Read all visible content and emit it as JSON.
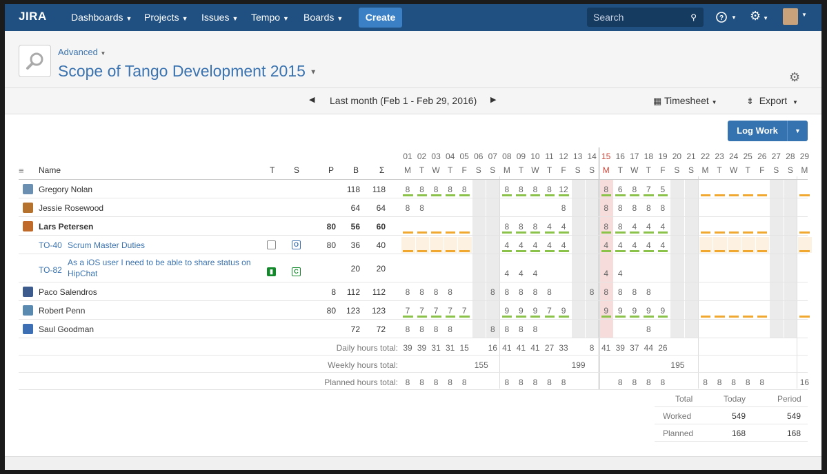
{
  "nav": {
    "logo": "JIRA",
    "items": [
      "Dashboards",
      "Projects",
      "Issues",
      "Tempo",
      "Boards"
    ],
    "create": "Create",
    "search_placeholder": "Search",
    "help": "?",
    "gear": "⚙"
  },
  "header": {
    "advanced": "Advanced",
    "title": "Scope of Tango Development 2015"
  },
  "toolbar": {
    "period": "Last month (Feb 1 - Feb 29, 2016)",
    "timesheet": "Timesheet",
    "export": "Export"
  },
  "logwork": "Log Work",
  "columns": {
    "name": "Name",
    "t": "T",
    "s": "S",
    "p": "P",
    "b": "B",
    "sigma": "Σ"
  },
  "days": {
    "numbers": [
      "01",
      "02",
      "03",
      "04",
      "05",
      "06",
      "07",
      "08",
      "09",
      "10",
      "11",
      "12",
      "13",
      "14",
      "15",
      "16",
      "17",
      "18",
      "19",
      "20",
      "21",
      "22",
      "23",
      "24",
      "25",
      "26",
      "27",
      "28",
      "29"
    ],
    "weekdays": [
      "M",
      "T",
      "W",
      "T",
      "F",
      "S",
      "S",
      "M",
      "T",
      "W",
      "T",
      "F",
      "S",
      "S",
      "M",
      "T",
      "W",
      "T",
      "F",
      "S",
      "S",
      "M",
      "T",
      "W",
      "T",
      "F",
      "S",
      "S",
      "M"
    ]
  },
  "rows": [
    {
      "name": "Gregory Nolan",
      "p": "",
      "b": "118",
      "sum": "118",
      "avatar": "#6a8fb0",
      "cells": [
        "8",
        "8",
        "8",
        "8",
        "8",
        "",
        "",
        "8",
        "8",
        "8",
        "8",
        "12",
        "",
        "",
        "8",
        "6",
        "8",
        "7",
        "5",
        "",
        "",
        "",
        "",
        "",
        "",
        "",
        "",
        "",
        ""
      ]
    },
    {
      "name": "Jessie Rosewood",
      "p": "",
      "b": "64",
      "sum": "64",
      "avatar": "#b5722f",
      "cells": [
        "8",
        "8",
        "",
        "",
        "",
        "",
        "",
        "",
        "",
        "",
        "",
        "8",
        "",
        "",
        "8",
        "8",
        "8",
        "8",
        "8",
        "",
        "",
        "",
        "",
        "",
        "",
        "",
        "",
        "",
        ""
      ]
    },
    {
      "name": "Lars Petersen",
      "p": "80",
      "b": "56",
      "sum": "60",
      "avatar": "#c06a2a",
      "bold": true,
      "cells": [
        "",
        "",
        "",
        "",
        "",
        "",
        "",
        "8",
        "8",
        "8",
        "4",
        "4",
        "",
        "",
        "8",
        "8",
        "4",
        "4",
        "4",
        "",
        "",
        "",
        "",
        "",
        "",
        "",
        "",
        "",
        ""
      ]
    },
    {
      "key": "TO-40",
      "summary": "Scrum Master Duties",
      "badge": "O",
      "p": "80",
      "b": "36",
      "sum": "40",
      "cells": [
        "",
        "",
        "",
        "",
        "",
        "",
        "",
        "4",
        "4",
        "4",
        "4",
        "4",
        "",
        "",
        "4",
        "4",
        "4",
        "4",
        "4",
        "",
        "",
        "",
        "",
        "",
        "",
        "",
        "",
        "",
        ""
      ]
    },
    {
      "key": "TO-82",
      "summary": "As a iOS user I need to be able to share status on",
      "summary2": "HipChat",
      "badge": "C",
      "p": "",
      "b": "20",
      "sum": "20",
      "cells": [
        "",
        "",
        "",
        "",
        "",
        "",
        "",
        "4",
        "4",
        "4",
        "",
        "",
        "",
        "",
        "4",
        "4",
        "",
        "",
        "",
        "",
        "",
        "",
        "",
        "",
        "",
        "",
        "",
        "",
        ""
      ]
    },
    {
      "name": "Paco Salendros",
      "p": "8",
      "b": "112",
      "sum": "112",
      "avatar": "#3d5b8c",
      "cells": [
        "8",
        "8",
        "8",
        "8",
        "",
        "",
        "8",
        "8",
        "8",
        "8",
        "8",
        "",
        "",
        "8",
        "8",
        "8",
        "8",
        "8",
        "",
        "",
        "",
        "",
        "",
        "",
        "",
        "",
        "",
        "",
        ""
      ]
    },
    {
      "name": "Robert Penn",
      "p": "80",
      "b": "123",
      "sum": "123",
      "avatar": "#5b8ab0",
      "cells": [
        "7",
        "7",
        "7",
        "7",
        "7",
        "",
        "",
        "9",
        "9",
        "9",
        "7",
        "9",
        "",
        "",
        "9",
        "9",
        "9",
        "9",
        "9",
        "",
        "",
        "",
        "",
        "",
        "",
        "",
        "",
        "",
        ""
      ]
    },
    {
      "name": "Saul Goodman",
      "p": "",
      "b": "72",
      "sum": "72",
      "avatar": "#3c6fb3",
      "cells": [
        "8",
        "8",
        "8",
        "8",
        "",
        "",
        "8",
        "8",
        "8",
        "8",
        "",
        "",
        "",
        "",
        "",
        "",
        "",
        "8",
        "",
        "",
        "",
        "",
        "",
        "",
        "",
        "",
        "",
        "",
        ""
      ]
    }
  ],
  "totals": {
    "daily_label": "Daily hours total:",
    "daily": [
      "39",
      "39",
      "31",
      "31",
      "15",
      "",
      "16",
      "41",
      "41",
      "41",
      "27",
      "33",
      "",
      "8",
      "41",
      "39",
      "37",
      "44",
      "26",
      "",
      "",
      "",
      "",
      "",
      "",
      "",
      "",
      "",
      ""
    ],
    "weekly_label": "Weekly hours total:",
    "weekly": [
      "155",
      "199",
      "195"
    ],
    "planned_label": "Planned hours total:",
    "planned": [
      "8",
      "8",
      "8",
      "8",
      "8",
      "",
      "",
      "8",
      "8",
      "8",
      "8",
      "8",
      "",
      "",
      "",
      "8",
      "8",
      "8",
      "8",
      "",
      "",
      "8",
      "8",
      "8",
      "8",
      "8",
      "",
      "",
      "16"
    ]
  },
  "summary": {
    "headers": [
      "Total",
      "Today",
      "Period"
    ],
    "rows": [
      {
        "label": "Worked",
        "today": "549",
        "period": "549"
      },
      {
        "label": "Planned",
        "today": "168",
        "period": "168"
      }
    ]
  }
}
